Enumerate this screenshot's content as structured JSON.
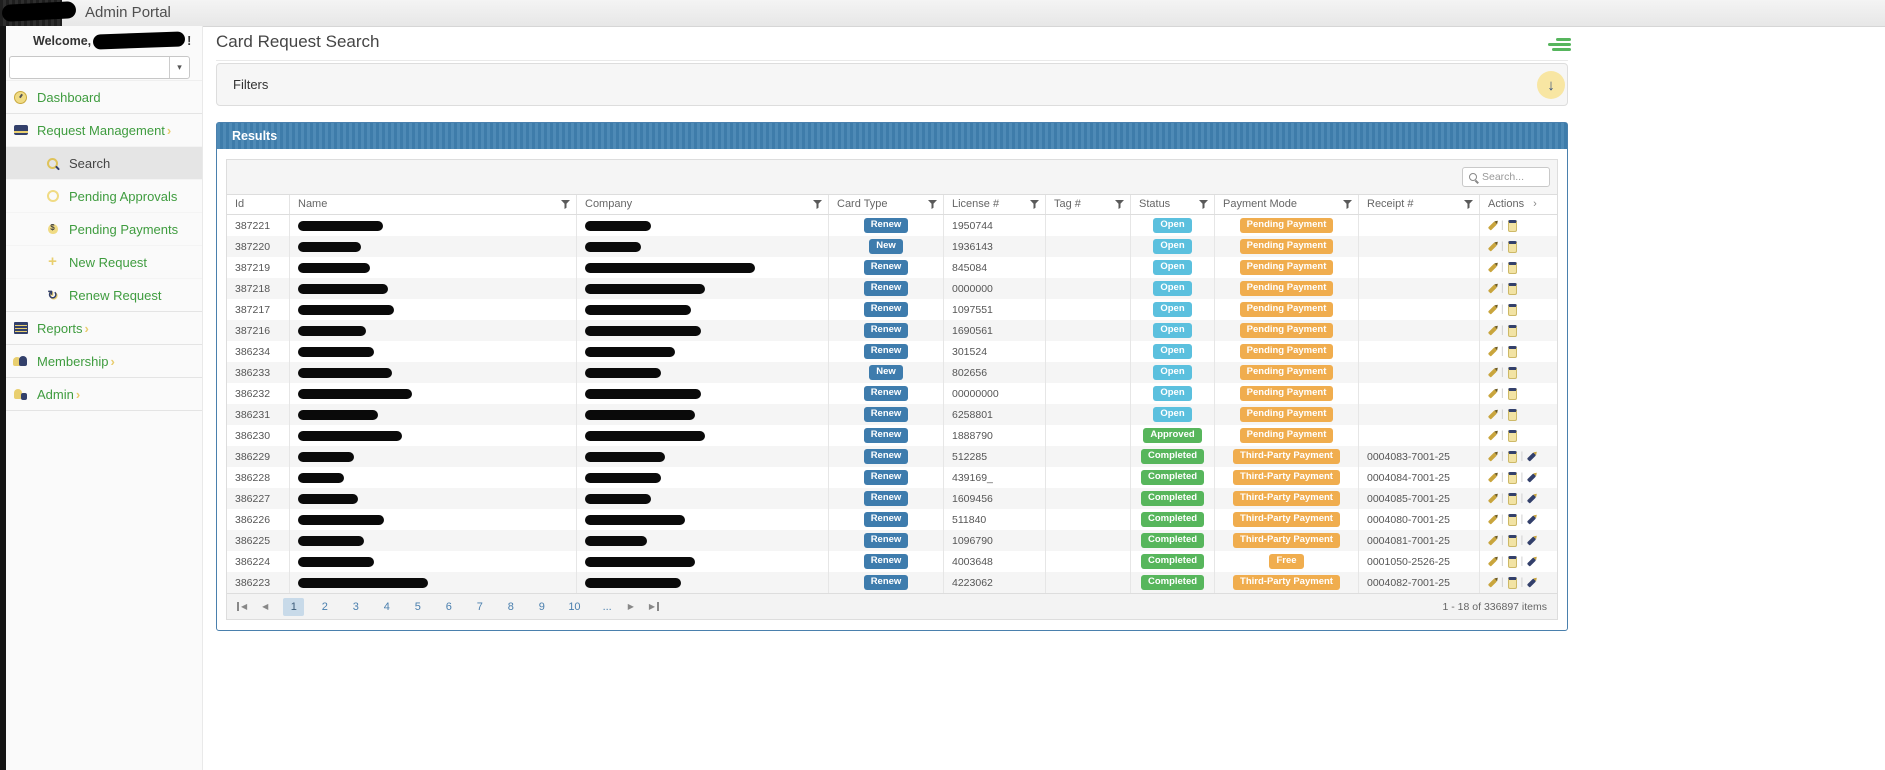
{
  "topbar": {
    "title": "Admin Portal"
  },
  "sidebar": {
    "welcome_prefix": "Welcome,",
    "welcome_suffix": "!",
    "items": [
      {
        "label": "Dashboard",
        "icon": "dashboard-icon"
      },
      {
        "label": "Request Management",
        "icon": "credit-card-icon"
      },
      {
        "label": "Search",
        "icon": "search-icon"
      },
      {
        "label": "Pending Approvals",
        "icon": "circle-icon"
      },
      {
        "label": "Pending Payments",
        "icon": "money-bag-icon"
      },
      {
        "label": "New Request",
        "icon": "plus-icon"
      },
      {
        "label": "Renew Request",
        "icon": "renew-icon"
      },
      {
        "label": "Reports",
        "icon": "report-list-icon"
      },
      {
        "label": "Membership",
        "icon": "people-icon"
      },
      {
        "label": "Admin",
        "icon": "admin-user-icon"
      }
    ]
  },
  "main": {
    "page_title": "Card Request Search",
    "filters": {
      "title": "Filters"
    },
    "results": {
      "title": "Results",
      "search_placeholder": "Search...",
      "columns": [
        "Id",
        "Name",
        "Company",
        "Card Type",
        "License #",
        "Tag #",
        "Status",
        "Payment Mode",
        "Receipt #",
        "Actions"
      ],
      "colors": {
        "card_type_badge": "#3e7cad",
        "status_open": "#5bc0de",
        "status_done": "#57b65c",
        "payment_badge": "#f0ad4e",
        "panel_header": "#4181b1"
      },
      "rows": [
        {
          "id": "387221",
          "name_w": 85,
          "co_w": 66,
          "card": "Renew",
          "license": "1950744",
          "tag": "",
          "status": "Open",
          "status_kind": "sky",
          "payment": "Pending Payment",
          "receipt": "",
          "extra": false
        },
        {
          "id": "387220",
          "name_w": 63,
          "co_w": 56,
          "card": "New",
          "license": "1936143",
          "tag": "",
          "status": "Open",
          "status_kind": "sky",
          "payment": "Pending Payment",
          "receipt": "",
          "extra": false
        },
        {
          "id": "387219",
          "name_w": 72,
          "co_w": 170,
          "card": "Renew",
          "license": "845084",
          "tag": "",
          "status": "Open",
          "status_kind": "sky",
          "payment": "Pending Payment",
          "receipt": "",
          "extra": false
        },
        {
          "id": "387218",
          "name_w": 90,
          "co_w": 120,
          "card": "Renew",
          "license": "0000000",
          "tag": "",
          "status": "Open",
          "status_kind": "sky",
          "payment": "Pending Payment",
          "receipt": "",
          "extra": false
        },
        {
          "id": "387217",
          "name_w": 96,
          "co_w": 106,
          "card": "Renew",
          "license": "1097551",
          "tag": "",
          "status": "Open",
          "status_kind": "sky",
          "payment": "Pending Payment",
          "receipt": "",
          "extra": false
        },
        {
          "id": "387216",
          "name_w": 68,
          "co_w": 116,
          "card": "Renew",
          "license": "1690561",
          "tag": "",
          "status": "Open",
          "status_kind": "sky",
          "payment": "Pending Payment",
          "receipt": "",
          "extra": false
        },
        {
          "id": "386234",
          "name_w": 76,
          "co_w": 90,
          "card": "Renew",
          "license": "301524",
          "tag": "",
          "status": "Open",
          "status_kind": "sky",
          "payment": "Pending Payment",
          "receipt": "",
          "extra": false
        },
        {
          "id": "386233",
          "name_w": 94,
          "co_w": 76,
          "card": "New",
          "license": "802656",
          "tag": "",
          "status": "Open",
          "status_kind": "sky",
          "payment": "Pending Payment",
          "receipt": "",
          "extra": false
        },
        {
          "id": "386232",
          "name_w": 114,
          "co_w": 116,
          "card": "Renew",
          "license": "00000000",
          "tag": "",
          "status": "Open",
          "status_kind": "sky",
          "payment": "Pending Payment",
          "receipt": "",
          "extra": false
        },
        {
          "id": "386231",
          "name_w": 80,
          "co_w": 110,
          "card": "Renew",
          "license": "6258801",
          "tag": "",
          "status": "Open",
          "status_kind": "sky",
          "payment": "Pending Payment",
          "receipt": "",
          "extra": false
        },
        {
          "id": "386230",
          "name_w": 104,
          "co_w": 120,
          "card": "Renew",
          "license": "1888790",
          "tag": "",
          "status": "Approved",
          "status_kind": "green",
          "payment": "Pending Payment",
          "receipt": "",
          "extra": false
        },
        {
          "id": "386229",
          "name_w": 56,
          "co_w": 80,
          "card": "Renew",
          "license": "512285",
          "tag": "",
          "status": "Completed",
          "status_kind": "green",
          "payment": "Third-Party Payment",
          "receipt": "0004083-7001-25",
          "extra": true
        },
        {
          "id": "386228",
          "name_w": 46,
          "co_w": 76,
          "card": "Renew",
          "license": "439169_",
          "tag": "",
          "status": "Completed",
          "status_kind": "green",
          "payment": "Third-Party Payment",
          "receipt": "0004084-7001-25",
          "extra": true
        },
        {
          "id": "386227",
          "name_w": 60,
          "co_w": 66,
          "card": "Renew",
          "license": "1609456",
          "tag": "",
          "status": "Completed",
          "status_kind": "green",
          "payment": "Third-Party Payment",
          "receipt": "0004085-7001-25",
          "extra": true
        },
        {
          "id": "386226",
          "name_w": 86,
          "co_w": 100,
          "card": "Renew",
          "license": "511840",
          "tag": "",
          "status": "Completed",
          "status_kind": "green",
          "payment": "Third-Party Payment",
          "receipt": "0004080-7001-25",
          "extra": true
        },
        {
          "id": "386225",
          "name_w": 66,
          "co_w": 62,
          "card": "Renew",
          "license": "1096790",
          "tag": "",
          "status": "Completed",
          "status_kind": "green",
          "payment": "Third-Party Payment",
          "receipt": "0004081-7001-25",
          "extra": true
        },
        {
          "id": "386224",
          "name_w": 76,
          "co_w": 110,
          "card": "Renew",
          "license": "4003648",
          "tag": "",
          "status": "Completed",
          "status_kind": "green",
          "payment": "Free",
          "receipt": "0001050-2526-25",
          "extra": true
        },
        {
          "id": "386223",
          "name_w": 130,
          "co_w": 96,
          "card": "Renew",
          "license": "4223062",
          "tag": "",
          "status": "Completed",
          "status_kind": "green",
          "payment": "Third-Party Payment",
          "receipt": "0004082-7001-25",
          "extra": true
        }
      ],
      "pager": {
        "pages": [
          {
            "n": "1",
            "cur": true
          },
          {
            "n": "2"
          },
          {
            "n": "3"
          },
          {
            "n": "4"
          },
          {
            "n": "5"
          },
          {
            "n": "6"
          },
          {
            "n": "7"
          },
          {
            "n": "8"
          },
          {
            "n": "9"
          },
          {
            "n": "10"
          },
          {
            "n": "..."
          }
        ],
        "summary": "1 - 18 of 336897 items"
      }
    }
  }
}
